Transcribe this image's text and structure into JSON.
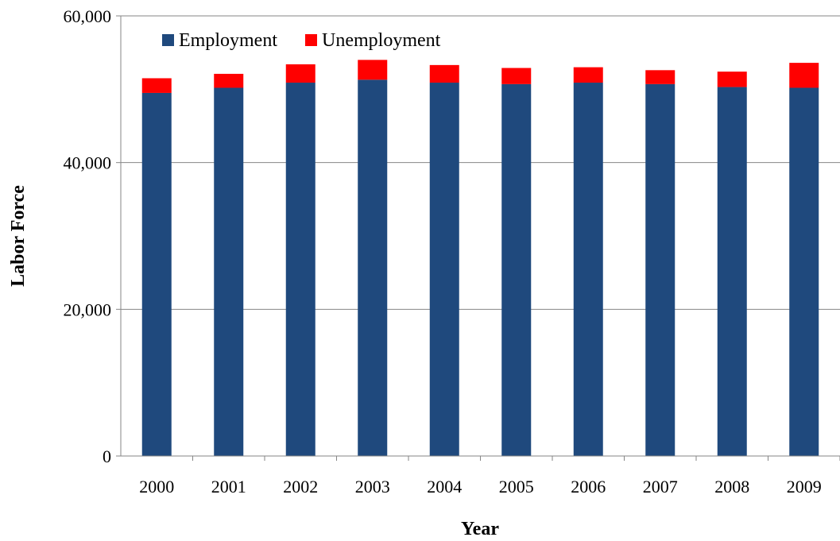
{
  "chart_data": {
    "type": "bar",
    "stacked": true,
    "categories": [
      "2000",
      "2001",
      "2002",
      "2003",
      "2004",
      "2005",
      "2006",
      "2007",
      "2008",
      "2009"
    ],
    "series": [
      {
        "name": "Employment",
        "color": "#1F497D",
        "values": [
          49500,
          50200,
          50900,
          51300,
          50900,
          50700,
          50900,
          50700,
          50300,
          50200
        ]
      },
      {
        "name": "Unemployment",
        "color": "#FF0000",
        "values": [
          2000,
          1900,
          2500,
          2700,
          2400,
          2200,
          2100,
          1900,
          2100,
          3400
        ]
      }
    ],
    "title": "",
    "xlabel": "Year",
    "ylabel": "Labor Force",
    "ylim": [
      0,
      60000
    ],
    "yticks": [
      0,
      20000,
      40000,
      60000
    ],
    "ytick_labels": [
      "0",
      "20,000",
      "40,000",
      "60,000"
    ],
    "grid": "horizontal",
    "gridline_color": "#868686",
    "legend_position": "top-left"
  }
}
